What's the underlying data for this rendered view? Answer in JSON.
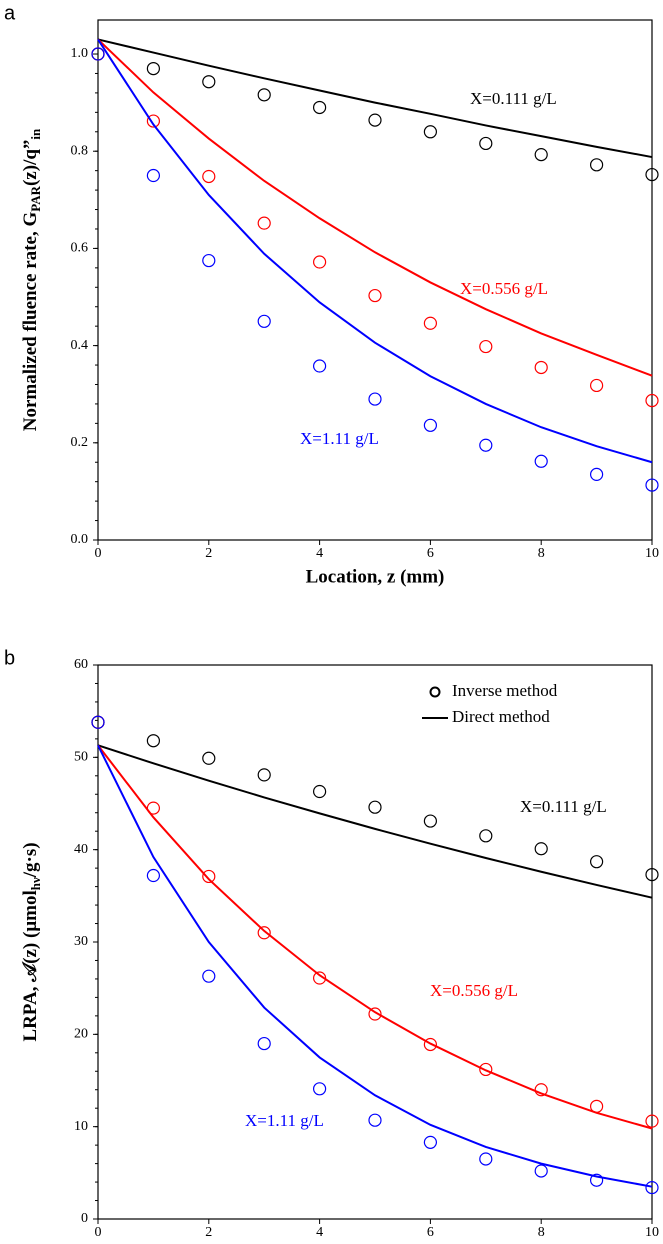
{
  "chart_data": [
    {
      "type": "scatter_line",
      "panel_label": "a",
      "xlabel": "Location, z (mm)",
      "ylabel": [
        "Normalized fluence rate,  G",
        "PAR",
        "(z)/q”",
        "in"
      ],
      "x": [
        0,
        1,
        2,
        3,
        4,
        5,
        6,
        7,
        8,
        9,
        10
      ],
      "xlim": [
        0,
        10
      ],
      "xticks": [
        0,
        2,
        4,
        6,
        8,
        10
      ],
      "ylim": [
        0,
        1.07
      ],
      "yticks": [
        {
          "value": 0,
          "label": "0.0"
        },
        {
          "value": 0.2,
          "label": "0.2"
        },
        {
          "value": 0.4,
          "label": "0.4"
        },
        {
          "value": 0.6,
          "label": "0.6"
        },
        {
          "value": 0.8,
          "label": "0.8"
        },
        {
          "value": 1,
          "label": "1.0"
        }
      ],
      "series": [
        {
          "name": "X=0.111 g/L",
          "color": "#000000",
          "values": [
            1.0,
            0.97,
            0.943,
            0.916,
            0.89,
            0.864,
            0.84,
            0.816,
            0.793,
            0.772,
            0.752
          ],
          "fit_values": [
            1.03,
            1.003,
            0.976,
            0.95,
            0.925,
            0.9,
            0.877,
            0.853,
            0.831,
            0.809,
            0.788
          ]
        },
        {
          "name": "X=0.556 g/L",
          "color": "#ff0000",
          "values": [
            1.0,
            0.862,
            0.748,
            0.652,
            0.572,
            0.503,
            0.446,
            0.398,
            0.355,
            0.318,
            0.287
          ],
          "fit_values": [
            1.03,
            0.921,
            0.826,
            0.739,
            0.662,
            0.592,
            0.53,
            0.475,
            0.425,
            0.381,
            0.338
          ]
        },
        {
          "name": "X=1.11 g/L",
          "color": "#0000ff",
          "values": [
            1.0,
            0.75,
            0.575,
            0.45,
            0.358,
            0.29,
            0.236,
            0.195,
            0.162,
            0.135,
            0.113
          ],
          "fit_values": [
            1.03,
            0.855,
            0.71,
            0.589,
            0.489,
            0.406,
            0.337,
            0.28,
            0.232,
            0.193,
            0.16
          ]
        }
      ]
    },
    {
      "type": "scatter_line",
      "panel_label": "b",
      "xlabel": "Location, z (mm)",
      "ylabel": [
        "LRPA, 𝒜(z) (μmol",
        "hν",
        "/g·s)"
      ],
      "legend": [
        "Inverse method",
        "Direct method"
      ],
      "x": [
        0,
        1,
        2,
        3,
        4,
        5,
        6,
        7,
        8,
        9,
        10
      ],
      "xlim": [
        0,
        10
      ],
      "xticks": [
        0,
        2,
        4,
        6,
        8,
        10
      ],
      "ylim": [
        0,
        60
      ],
      "yticks": [
        0,
        10,
        20,
        30,
        40,
        50,
        60
      ],
      "series": [
        {
          "name": "X=0.111 g/L",
          "color": "#000000",
          "values": [
            53.8,
            51.8,
            49.9,
            48.1,
            46.3,
            44.6,
            43.1,
            41.5,
            40.1,
            38.7,
            37.3
          ],
          "fit_values": [
            51.3,
            49.35,
            47.47,
            45.66,
            43.93,
            42.25,
            40.65,
            39.1,
            37.61,
            36.18,
            34.8
          ]
        },
        {
          "name": "X=0.556 g/L",
          "color": "#ff0000",
          "values": [
            53.8,
            44.5,
            37.1,
            31.0,
            26.1,
            22.2,
            18.9,
            16.2,
            14.0,
            12.2,
            10.6
          ],
          "fit_values": [
            51.3,
            43.5,
            36.8,
            31.2,
            26.4,
            22.4,
            19.0,
            16.1,
            13.6,
            11.5,
            9.8
          ]
        },
        {
          "name": "X=1.11 g/L",
          "color": "#0000ff",
          "values": [
            53.8,
            37.2,
            26.3,
            19.0,
            14.1,
            10.7,
            8.3,
            6.5,
            5.2,
            4.2,
            3.4
          ],
          "fit_values": [
            51.3,
            39.2,
            30.0,
            22.9,
            17.5,
            13.4,
            10.2,
            7.8,
            6.0,
            4.6,
            3.5
          ]
        }
      ]
    }
  ]
}
